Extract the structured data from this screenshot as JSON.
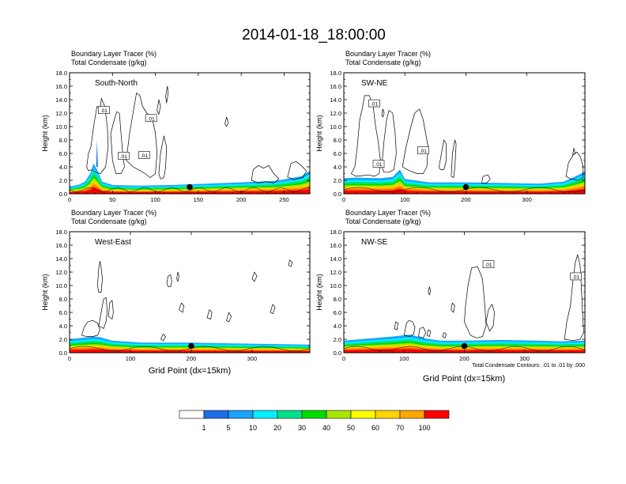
{
  "title": "2014-01-18_18:00:00",
  "colors": {
    "levels": [
      "#ffffff",
      "#1e6fe6",
      "#1aa3ff",
      "#00f0ff",
      "#00e28c",
      "#00dc00",
      "#a6e600",
      "#ffff00",
      "#ffd400",
      "#ffa600",
      "#ff6400",
      "#ff0000"
    ],
    "contour": "#000000"
  },
  "chart_data": [
    {
      "type": "heatmap",
      "id": "south-north",
      "label": "South-North",
      "left_title_1": "Boundary Layer Tracer   (%)",
      "left_title_2": "Total Condensate   (g/kg)",
      "ylabel": "Height (km)",
      "xlabel": "",
      "ylim": [
        0,
        18
      ],
      "xlim": [
        0,
        280
      ],
      "xticks": [
        0,
        50,
        100,
        150,
        200,
        250
      ],
      "yticks": [
        "0.0",
        "2.0",
        "4.0",
        "6.0",
        "8.0",
        "10.0",
        "12.0",
        "14.0",
        "16.0",
        "18.0"
      ],
      "marker_x": 140,
      "contour_labels": [
        {
          "x": 40,
          "y": 12.4,
          "text": ".01"
        },
        {
          "x": 95,
          "y": 11.2,
          "text": ".01"
        },
        {
          "x": 63,
          "y": 5.6,
          "text": ".01"
        },
        {
          "x": 87,
          "y": 5.7,
          "text": ".01"
        }
      ],
      "tracer_bl_profile": [
        [
          0,
          1.1
        ],
        [
          10,
          1.3
        ],
        [
          18,
          1.8
        ],
        [
          24,
          3.0
        ],
        [
          28,
          4.5
        ],
        [
          32,
          3.6
        ],
        [
          38,
          1.8
        ],
        [
          50,
          1.3
        ],
        [
          80,
          1.2
        ],
        [
          120,
          1.3
        ],
        [
          160,
          1.5
        ],
        [
          200,
          1.7
        ],
        [
          240,
          1.9
        ],
        [
          270,
          2.6
        ],
        [
          280,
          3.4
        ]
      ]
    },
    {
      "type": "heatmap",
      "id": "sw-ne",
      "label": "SW-NE",
      "left_title_1": "Boundary Layer Tracer   (%)",
      "left_title_2": "Total Condensate   (g/kg)",
      "ylabel": "Height (km)",
      "xlabel": "",
      "ylim": [
        0,
        18
      ],
      "xlim": [
        0,
        395
      ],
      "xticks": [
        0,
        100,
        200,
        300
      ],
      "yticks": [
        "0.0",
        "2.0",
        "4.0",
        "6.0",
        "8.0",
        "10.0",
        "12.0",
        "14.0",
        "16.0",
        "18.0"
      ],
      "marker_x": 200,
      "contour_labels": [
        {
          "x": 50,
          "y": 13.4,
          "text": ".01"
        },
        {
          "x": 130,
          "y": 6.4,
          "text": ".01"
        },
        {
          "x": 57,
          "y": 4.4,
          "text": ".01"
        }
      ],
      "tracer_bl_profile": [
        [
          0,
          2.3
        ],
        [
          20,
          2.4
        ],
        [
          60,
          2.3
        ],
        [
          80,
          2.5
        ],
        [
          92,
          3.6
        ],
        [
          100,
          2.2
        ],
        [
          140,
          1.7
        ],
        [
          200,
          1.7
        ],
        [
          260,
          1.6
        ],
        [
          320,
          1.5
        ],
        [
          360,
          1.8
        ],
        [
          380,
          2.6
        ],
        [
          395,
          3.3
        ]
      ]
    },
    {
      "type": "heatmap",
      "id": "west-east",
      "label": "West-East",
      "left_title_1": "Boundary Layer Tracer   (%)",
      "left_title_2": "Total Condensate   (g/kg)",
      "ylabel": "Height (km)",
      "xlabel": "Grid Point (dx=15km)",
      "ylim": [
        0,
        18
      ],
      "xlim": [
        0,
        395
      ],
      "xticks": [
        0,
        100,
        200,
        300
      ],
      "yticks": [
        "0.0",
        "2.0",
        "4.0",
        "6.0",
        "8.0",
        "10.0",
        "12.0",
        "14.0",
        "16.0",
        "18.0"
      ],
      "marker_x": 200,
      "contour_labels": [],
      "tracer_bl_profile": [
        [
          0,
          2.0
        ],
        [
          20,
          2.2
        ],
        [
          40,
          2.4
        ],
        [
          50,
          2.3
        ],
        [
          70,
          1.8
        ],
        [
          120,
          1.5
        ],
        [
          200,
          1.5
        ],
        [
          260,
          1.4
        ],
        [
          320,
          1.3
        ],
        [
          395,
          1.2
        ]
      ]
    },
    {
      "type": "heatmap",
      "id": "nw-se",
      "label": "NW-SE",
      "left_title_1": "Boundary Layer Tracer   (%)",
      "left_title_2": "Total Condensate   (g/kg)",
      "ylabel": "Height (km)",
      "xlabel": "Grid Point (dx=15km)",
      "ylim": [
        0,
        18
      ],
      "xlim": [
        0,
        400
      ],
      "xticks": [
        0,
        100,
        200,
        300
      ],
      "yticks": [
        "0.0",
        "2.0",
        "4.0",
        "6.0",
        "8.0",
        "10.0",
        "12.0",
        "14.0",
        "16.0",
        "18.0"
      ],
      "marker_x": 200,
      "contour_info": "Total Condensate Contours: .01 to .01 by .000",
      "contour_labels": [
        {
          "x": 240,
          "y": 13.1,
          "text": ".01"
        },
        {
          "x": 385,
          "y": 11.3,
          "text": ".01"
        }
      ],
      "tracer_bl_profile": [
        [
          0,
          1.8
        ],
        [
          40,
          2.1
        ],
        [
          80,
          2.4
        ],
        [
          110,
          2.7
        ],
        [
          130,
          2.2
        ],
        [
          160,
          1.8
        ],
        [
          200,
          1.8
        ],
        [
          260,
          1.9
        ],
        [
          320,
          1.8
        ],
        [
          360,
          1.7
        ],
        [
          400,
          1.8
        ]
      ]
    }
  ],
  "colorbar": {
    "labels": [
      "1",
      "5",
      "10",
      "20",
      "30",
      "40",
      "50",
      "60",
      "70",
      "100"
    ]
  }
}
